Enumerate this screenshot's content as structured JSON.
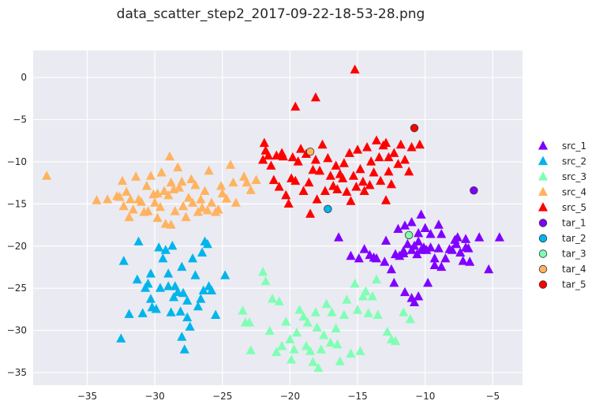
{
  "chart_data": {
    "type": "scatter",
    "title": "data_scatter_step2_2017-09-22-18-53-28.png",
    "xlabel": "",
    "ylabel": "",
    "xlim": [
      -39,
      -2.8
    ],
    "ylim": [
      -36.5,
      3.2
    ],
    "xticks": [
      -35,
      -30,
      -25,
      -20,
      -15,
      -10,
      -5
    ],
    "yticks": [
      0,
      -5,
      -10,
      -15,
      -20,
      -25,
      -30,
      -35
    ],
    "grid": true,
    "legend_position": "right",
    "series": [
      {
        "name": "src_1",
        "marker": "triangle",
        "color": "#8000ff",
        "points": [
          [
            -15.5,
            -21.2
          ],
          [
            -14.9,
            -21.5
          ],
          [
            -14.5,
            -20.4
          ],
          [
            -14.1,
            -21.1
          ],
          [
            -13.6,
            -21.5
          ],
          [
            -13.0,
            -21.9
          ],
          [
            -12.9,
            -19.4
          ],
          [
            -12.5,
            -22.8
          ],
          [
            -12.2,
            -21.0
          ],
          [
            -11.9,
            -21.2
          ],
          [
            -11.6,
            -20.6
          ],
          [
            -11.3,
            -19.8
          ],
          [
            -11.0,
            -20.5
          ],
          [
            -10.8,
            -20.0
          ],
          [
            -10.6,
            -21.0
          ],
          [
            -10.5,
            -19.5
          ],
          [
            -10.3,
            -20.5
          ],
          [
            -10.1,
            -20.2
          ],
          [
            -9.9,
            -20.5
          ],
          [
            -9.6,
            -20.2
          ],
          [
            -9.3,
            -21.5
          ],
          [
            -9.0,
            -20.3
          ],
          [
            -8.8,
            -22.5
          ],
          [
            -8.5,
            -21.5
          ],
          [
            -8.2,
            -20.4
          ],
          [
            -8.0,
            -20.5
          ],
          [
            -7.8,
            -19.3
          ],
          [
            -7.6,
            -19.0
          ],
          [
            -7.4,
            -20.8
          ],
          [
            -7.2,
            -21.8
          ],
          [
            -7.0,
            -19.2
          ],
          [
            -7.0,
            -20.2
          ],
          [
            -6.8,
            -20.3
          ],
          [
            -6.7,
            -21.9
          ],
          [
            -6.0,
            -19.0
          ],
          [
            -5.3,
            -22.8
          ],
          [
            -4.5,
            -19.0
          ],
          [
            -12.3,
            -24.4
          ],
          [
            -11.5,
            -25.5
          ],
          [
            -11.0,
            -26.2
          ],
          [
            -10.8,
            -26.7
          ],
          [
            -10.5,
            -26.0
          ],
          [
            -9.8,
            -24.4
          ],
          [
            -9.3,
            -22.3
          ],
          [
            -10.0,
            -17.9
          ],
          [
            -9.6,
            -18.6
          ],
          [
            -9.0,
            -17.5
          ],
          [
            -8.8,
            -18.6
          ],
          [
            -12.0,
            -18.0
          ],
          [
            -11.5,
            -17.6
          ],
          [
            -11.0,
            -17.2
          ],
          [
            -10.3,
            -16.3
          ],
          [
            -7.7,
            -19.8
          ],
          [
            -13.8,
            -21.4
          ],
          [
            -11.6,
            -20.9
          ],
          [
            -10.5,
            -18.5
          ],
          [
            -16.4,
            -19.0
          ]
        ]
      },
      {
        "name": "src_2",
        "marker": "triangle",
        "color": "#00b5eb",
        "points": [
          [
            -32.5,
            -31.0
          ],
          [
            -32.3,
            -21.8
          ],
          [
            -31.9,
            -28.1
          ],
          [
            -31.3,
            -24.0
          ],
          [
            -31.2,
            -19.5
          ],
          [
            -30.9,
            -28.0
          ],
          [
            -30.7,
            -25.0
          ],
          [
            -30.5,
            -24.5
          ],
          [
            -30.3,
            -26.3
          ],
          [
            -30.2,
            -27.3
          ],
          [
            -29.9,
            -27.5
          ],
          [
            -29.7,
            -20.2
          ],
          [
            -29.6,
            -25.0
          ],
          [
            -29.4,
            -21.5
          ],
          [
            -29.2,
            -20.5
          ],
          [
            -29.0,
            -24.8
          ],
          [
            -28.8,
            -27.9
          ],
          [
            -28.7,
            -20.0
          ],
          [
            -28.6,
            -26.1
          ],
          [
            -28.5,
            -24.8
          ],
          [
            -28.3,
            -25.5
          ],
          [
            -28.1,
            -27.8
          ],
          [
            -28.0,
            -30.8
          ],
          [
            -27.9,
            -25.6
          ],
          [
            -27.8,
            -32.3
          ],
          [
            -27.6,
            -28.5
          ],
          [
            -27.4,
            -29.6
          ],
          [
            -27.2,
            -21.5
          ],
          [
            -27.0,
            -23.5
          ],
          [
            -26.8,
            -27.2
          ],
          [
            -26.6,
            -26.3
          ],
          [
            -26.5,
            -20.8
          ],
          [
            -26.4,
            -25.3
          ],
          [
            -26.3,
            -19.5
          ],
          [
            -26.1,
            -19.8
          ],
          [
            -26.0,
            -24.8
          ],
          [
            -25.8,
            -25.3
          ],
          [
            -25.5,
            -28.2
          ],
          [
            -24.8,
            -23.5
          ],
          [
            -27.6,
            -26.5
          ],
          [
            -28.0,
            -22.5
          ],
          [
            -29.0,
            -23.3
          ],
          [
            -30.3,
            -23.3
          ]
        ]
      },
      {
        "name": "src_3",
        "marker": "triangle",
        "color": "#80ffb4",
        "points": [
          [
            -23.5,
            -27.7
          ],
          [
            -23.3,
            -29.1
          ],
          [
            -23.0,
            -29.1
          ],
          [
            -22.9,
            -32.4
          ],
          [
            -22.0,
            -23.1
          ],
          [
            -21.8,
            -24.2
          ],
          [
            -21.5,
            -30.1
          ],
          [
            -21.3,
            -26.3
          ],
          [
            -21.0,
            -32.6
          ],
          [
            -20.8,
            -26.6
          ],
          [
            -20.6,
            -31.9
          ],
          [
            -20.3,
            -29.0
          ],
          [
            -20.0,
            -31.1
          ],
          [
            -19.9,
            -33.5
          ],
          [
            -19.7,
            -32.3
          ],
          [
            -19.5,
            -30.3
          ],
          [
            -19.3,
            -27.6
          ],
          [
            -19.0,
            -28.4
          ],
          [
            -18.8,
            -31.9
          ],
          [
            -18.7,
            -29.1
          ],
          [
            -18.5,
            -32.5
          ],
          [
            -18.3,
            -33.8
          ],
          [
            -18.1,
            -27.9
          ],
          [
            -18.0,
            -29.7
          ],
          [
            -17.9,
            -34.5
          ],
          [
            -17.7,
            -32.3
          ],
          [
            -17.5,
            -30.6
          ],
          [
            -17.3,
            -26.9
          ],
          [
            -17.0,
            -31.5
          ],
          [
            -16.9,
            -27.9
          ],
          [
            -16.6,
            -29.8
          ],
          [
            -16.5,
            -31.7
          ],
          [
            -16.3,
            -33.7
          ],
          [
            -16.0,
            -28.2
          ],
          [
            -15.8,
            -26.4
          ],
          [
            -15.5,
            -32.8
          ],
          [
            -15.2,
            -24.5
          ],
          [
            -15.0,
            -27.6
          ],
          [
            -14.8,
            -32.5
          ],
          [
            -14.6,
            -26.0
          ],
          [
            -14.4,
            -25.4
          ],
          [
            -14.2,
            -28.0
          ],
          [
            -13.9,
            -26.0
          ],
          [
            -13.6,
            -24.0
          ],
          [
            -13.5,
            -28.2
          ],
          [
            -12.8,
            -30.2
          ],
          [
            -12.5,
            -31.1
          ],
          [
            -12.2,
            -31.3
          ],
          [
            -11.6,
            -27.9
          ],
          [
            -11.1,
            -28.7
          ]
        ]
      },
      {
        "name": "src_4",
        "marker": "triangle",
        "color": "#ffb360",
        "points": [
          [
            -38.0,
            -11.7
          ],
          [
            -34.3,
            -14.6
          ],
          [
            -33.5,
            -14.5
          ],
          [
            -32.8,
            -14.1
          ],
          [
            -32.6,
            -14.2
          ],
          [
            -32.4,
            -12.3
          ],
          [
            -32.3,
            -15.3
          ],
          [
            -32.1,
            -13.6
          ],
          [
            -31.9,
            -16.6
          ],
          [
            -31.8,
            -14.5
          ],
          [
            -31.6,
            -15.7
          ],
          [
            -31.4,
            -11.8
          ],
          [
            -31.2,
            -14.5
          ],
          [
            -31.0,
            -14.8
          ],
          [
            -30.8,
            -16.0
          ],
          [
            -30.6,
            -12.9
          ],
          [
            -30.5,
            -15.9
          ],
          [
            -30.3,
            -11.7
          ],
          [
            -30.1,
            -13.9
          ],
          [
            -30.0,
            -14.9
          ],
          [
            -29.8,
            -16.7
          ],
          [
            -29.6,
            -15.4
          ],
          [
            -29.5,
            -11.3
          ],
          [
            -29.3,
            -13.5
          ],
          [
            -29.2,
            -17.4
          ],
          [
            -29.0,
            -14.0
          ],
          [
            -28.8,
            -12.5
          ],
          [
            -28.6,
            -13.3
          ],
          [
            -28.5,
            -15.9
          ],
          [
            -28.3,
            -10.7
          ],
          [
            -28.2,
            -13.1
          ],
          [
            -28.0,
            -12.4
          ],
          [
            -27.9,
            -15.3
          ],
          [
            -27.7,
            -16.6
          ],
          [
            -27.5,
            -14.3
          ],
          [
            -27.3,
            -12.1
          ],
          [
            -27.2,
            -14.9
          ],
          [
            -27.0,
            -12.8
          ],
          [
            -26.8,
            -16.0
          ],
          [
            -26.6,
            -14.5
          ],
          [
            -26.5,
            -15.5
          ],
          [
            -26.3,
            -13.5
          ],
          [
            -26.1,
            -15.8
          ],
          [
            -26.0,
            -11.1
          ],
          [
            -25.8,
            -14.9
          ],
          [
            -25.5,
            -16.0
          ],
          [
            -25.3,
            -15.7
          ],
          [
            -25.1,
            -12.9
          ],
          [
            -25.0,
            -13.8
          ],
          [
            -24.7,
            -14.4
          ],
          [
            -24.4,
            -10.4
          ],
          [
            -24.2,
            -12.5
          ],
          [
            -24.0,
            -14.9
          ],
          [
            -23.4,
            -11.8
          ],
          [
            -23.2,
            -12.5
          ],
          [
            -22.9,
            -13.4
          ],
          [
            -22.5,
            -12.2
          ],
          [
            -29.8,
            -13.8
          ],
          [
            -28.9,
            -9.4
          ],
          [
            -28.8,
            -17.5
          ]
        ]
      },
      {
        "name": "src_5",
        "marker": "triangle",
        "color": "#ff0000",
        "points": [
          [
            -22.0,
            -9.8
          ],
          [
            -21.9,
            -7.8
          ],
          [
            -21.8,
            -8.7
          ],
          [
            -21.6,
            -9.3
          ],
          [
            -21.4,
            -10.5
          ],
          [
            -21.2,
            -12.2
          ],
          [
            -21.0,
            -9.3
          ],
          [
            -20.8,
            -13.0
          ],
          [
            -20.6,
            -9.0
          ],
          [
            -20.5,
            -9.4
          ],
          [
            -20.3,
            -14.0
          ],
          [
            -20.1,
            -15.0
          ],
          [
            -19.9,
            -12.0
          ],
          [
            -19.8,
            -9.5
          ],
          [
            -19.6,
            -12.3
          ],
          [
            -19.4,
            -10.0
          ],
          [
            -19.2,
            -8.5
          ],
          [
            -19.0,
            -13.5
          ],
          [
            -18.8,
            -9.1
          ],
          [
            -18.6,
            -12.5
          ],
          [
            -18.5,
            -16.2
          ],
          [
            -18.3,
            -11.0
          ],
          [
            -18.1,
            -9.8
          ],
          [
            -18.0,
            -14.5
          ],
          [
            -17.8,
            -11.1
          ],
          [
            -17.6,
            -8.0
          ],
          [
            -17.4,
            -13.5
          ],
          [
            -17.2,
            -9.6
          ],
          [
            -17.0,
            -11.7
          ],
          [
            -16.8,
            -12.9
          ],
          [
            -16.6,
            -10.5
          ],
          [
            -16.5,
            -13.3
          ],
          [
            -16.3,
            -11.5
          ],
          [
            -16.1,
            -12.0
          ],
          [
            -16.0,
            -10.2
          ],
          [
            -15.8,
            -13.6
          ],
          [
            -15.6,
            -9.0
          ],
          [
            -15.5,
            -14.7
          ],
          [
            -15.3,
            -11.7
          ],
          [
            -15.1,
            -13.0
          ],
          [
            -15.0,
            -8.6
          ],
          [
            -14.8,
            -10.9
          ],
          [
            -14.6,
            -12.4
          ],
          [
            -14.5,
            -13.5
          ],
          [
            -14.3,
            -8.3
          ],
          [
            -14.1,
            -12.8
          ],
          [
            -14.0,
            -10.0
          ],
          [
            -13.8,
            -11.3
          ],
          [
            -13.6,
            -7.5
          ],
          [
            -13.4,
            -9.5
          ],
          [
            -13.3,
            -12.3
          ],
          [
            -13.1,
            -8.1
          ],
          [
            -12.9,
            -7.8
          ],
          [
            -12.7,
            -11.2
          ],
          [
            -12.5,
            -12.7
          ],
          [
            -12.3,
            -9.0
          ],
          [
            -12.0,
            -10.3
          ],
          [
            -11.8,
            -8.0
          ],
          [
            -11.5,
            -9.8
          ],
          [
            -11.2,
            -11.2
          ],
          [
            -11.0,
            -8.3
          ],
          [
            -10.4,
            -8.0
          ],
          [
            -18.1,
            -2.4
          ],
          [
            -19.6,
            -3.5
          ],
          [
            -15.2,
            0.9
          ],
          [
            -12.9,
            -14.6
          ],
          [
            -12.7,
            -9.5
          ]
        ]
      },
      {
        "name": "tar_1",
        "marker": "circle",
        "color": "#8000ff",
        "points": [
          [
            -6.4,
            -13.4
          ]
        ]
      },
      {
        "name": "tar_2",
        "marker": "circle",
        "color": "#00b5eb",
        "points": [
          [
            -17.2,
            -15.6
          ]
        ]
      },
      {
        "name": "tar_3",
        "marker": "circle",
        "color": "#80ffb4",
        "points": [
          [
            -11.2,
            -18.7
          ]
        ]
      },
      {
        "name": "tar_4",
        "marker": "circle",
        "color": "#ffb360",
        "points": [
          [
            -18.5,
            -8.8
          ]
        ]
      },
      {
        "name": "tar_5",
        "marker": "circle",
        "color": "#ff0000",
        "points": [
          [
            -10.8,
            -6.0
          ]
        ]
      }
    ]
  }
}
